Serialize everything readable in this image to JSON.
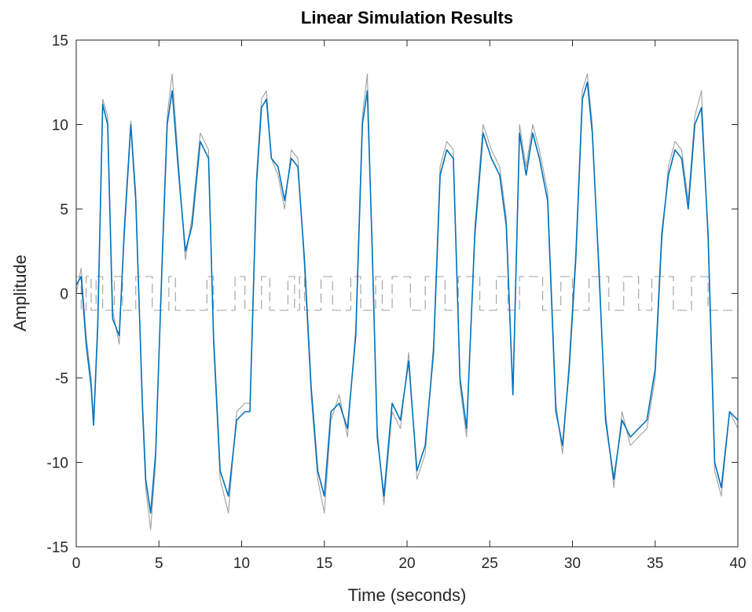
{
  "chart_data": {
    "type": "line",
    "title": "Linear Simulation Results",
    "xlabel": "Time (seconds)",
    "ylabel": "Amplitude",
    "xlim": [
      0,
      40
    ],
    "ylim": [
      -15,
      15
    ],
    "xticks": [
      0,
      5,
      10,
      15,
      20,
      25,
      30,
      35,
      40
    ],
    "yticks": [
      -15,
      -10,
      -5,
      0,
      5,
      10,
      15
    ],
    "grid": false,
    "legend": "none",
    "series": [
      {
        "role": "input",
        "style": "dashed-step",
        "color": "#a0a0a0",
        "x": [
          0,
          0.3,
          0.6,
          0.9,
          1.2,
          1.6,
          2.3,
          2.8,
          3.6,
          4.6,
          5.6,
          6.0,
          7.9,
          8.3,
          9.6,
          10.2,
          11.2,
          11.7,
          12.8,
          13.2,
          13.5,
          13.8,
          14.8,
          15.5,
          16.6,
          17.2,
          18.1,
          18.5,
          19.1,
          20.2,
          21.1,
          22.3,
          23.1,
          24.4,
          25.4,
          26.1,
          26.8,
          28.2,
          29.3,
          30.0,
          31.0,
          32.2,
          33.1,
          34.0,
          34.8,
          36.1,
          37.2,
          38.2,
          39.2,
          40.0
        ],
        "y": [
          1,
          -1,
          1,
          -1,
          1,
          -1,
          1,
          -1,
          1,
          -1,
          1,
          -1,
          1,
          -1,
          1,
          -1,
          1,
          -1,
          1,
          -1,
          1,
          -1,
          1,
          -1,
          1,
          -1,
          1,
          -1,
          1,
          -1,
          1,
          -1,
          1,
          -1,
          1,
          -1,
          1,
          -1,
          1,
          -1,
          1,
          -1,
          1,
          -1,
          1,
          -1,
          1,
          -1,
          -1,
          -1
        ]
      },
      {
        "role": "reference",
        "style": "solid",
        "color": "#a0a0a0",
        "x": [
          0,
          0.3,
          0.6,
          0.9,
          1.05,
          1.3,
          1.6,
          1.9,
          2.2,
          2.6,
          2.9,
          3.3,
          3.6,
          4.0,
          4.2,
          4.5,
          4.8,
          5.2,
          5.5,
          5.8,
          6.2,
          6.6,
          7.0,
          7.5,
          8.0,
          8.3,
          8.7,
          9.2,
          9.7,
          10.2,
          10.5,
          10.9,
          11.2,
          11.5,
          11.8,
          12.2,
          12.6,
          13.0,
          13.4,
          13.8,
          14.2,
          14.6,
          15.0,
          15.4,
          15.9,
          16.4,
          16.9,
          17.3,
          17.6,
          17.9,
          18.2,
          18.6,
          19.1,
          19.6,
          20.1,
          20.6,
          21.1,
          21.6,
          22.0,
          22.4,
          22.8,
          23.2,
          23.6,
          24.1,
          24.6,
          25.1,
          25.6,
          26.0,
          26.4,
          26.8,
          27.2,
          27.6,
          28.0,
          28.5,
          29.0,
          29.4,
          29.8,
          30.2,
          30.6,
          30.9,
          31.2,
          31.6,
          32.0,
          32.5,
          33.0,
          33.5,
          34.0,
          34.5,
          35.0,
          35.4,
          35.8,
          36.2,
          36.6,
          37.0,
          37.4,
          37.8,
          38.2,
          38.6,
          39.0,
          39.5,
          40.0
        ],
        "y": [
          0.0,
          1.5,
          -2.5,
          -5.0,
          -7.5,
          -1.5,
          11.5,
          10.5,
          -1.0,
          -3.0,
          4.0,
          10.2,
          6.0,
          -7.0,
          -11.5,
          -14.0,
          -10.0,
          2.5,
          10.5,
          13.0,
          7.5,
          2.0,
          4.5,
          9.5,
          8.5,
          -3.0,
          -11.0,
          -13.0,
          -7.0,
          -6.5,
          -6.5,
          7.0,
          11.5,
          12.0,
          8.0,
          7.0,
          5.0,
          8.5,
          8.0,
          1.5,
          -6.0,
          -11.0,
          -13.0,
          -7.5,
          -6.0,
          -8.5,
          -2.0,
          10.5,
          13.0,
          2.0,
          -8.0,
          -12.5,
          -7.0,
          -8.0,
          -3.5,
          -11.0,
          -9.5,
          -3.0,
          7.5,
          9.0,
          8.5,
          -5.5,
          -8.5,
          4.0,
          10.0,
          8.5,
          7.5,
          4.5,
          -6.0,
          10.0,
          7.5,
          10.0,
          8.5,
          6.0,
          -6.5,
          -9.5,
          -4.0,
          2.5,
          12.0,
          13.0,
          10.0,
          1.0,
          -7.0,
          -11.5,
          -7.0,
          -9.0,
          -8.5,
          -8.0,
          -5.0,
          3.0,
          7.5,
          9.0,
          8.5,
          5.5,
          10.5,
          12.0,
          3.0,
          -10.5,
          -12.0,
          -7.0,
          -8.0
        ]
      },
      {
        "role": "response",
        "style": "solid",
        "color": "#0072bd",
        "x": [
          0,
          0.3,
          0.6,
          0.9,
          1.05,
          1.3,
          1.6,
          1.9,
          2.2,
          2.6,
          2.9,
          3.3,
          3.6,
          4.0,
          4.2,
          4.5,
          4.8,
          5.2,
          5.5,
          5.8,
          6.2,
          6.6,
          7.0,
          7.5,
          8.0,
          8.3,
          8.7,
          9.2,
          9.7,
          10.2,
          10.5,
          10.9,
          11.2,
          11.5,
          11.8,
          12.2,
          12.6,
          13.0,
          13.4,
          13.8,
          14.2,
          14.6,
          15.0,
          15.4,
          15.9,
          16.4,
          16.9,
          17.3,
          17.6,
          17.9,
          18.2,
          18.6,
          19.1,
          19.6,
          20.1,
          20.6,
          21.1,
          21.6,
          22.0,
          22.4,
          22.8,
          23.2,
          23.6,
          24.1,
          24.6,
          25.1,
          25.6,
          26.0,
          26.4,
          26.8,
          27.2,
          27.6,
          28.0,
          28.5,
          29.0,
          29.4,
          29.8,
          30.2,
          30.6,
          30.9,
          31.2,
          31.6,
          32.0,
          32.5,
          33.0,
          33.5,
          34.0,
          34.5,
          35.0,
          35.4,
          35.8,
          36.2,
          36.6,
          37.0,
          37.4,
          37.8,
          38.2,
          38.6,
          39.0,
          39.5,
          40.0
        ],
        "y": [
          0.5,
          1.0,
          -3.0,
          -5.5,
          -7.8,
          -2.0,
          11.2,
          10.0,
          -1.5,
          -2.5,
          3.5,
          10.0,
          5.5,
          -6.5,
          -11.0,
          -13.0,
          -9.5,
          2.0,
          10.0,
          12.0,
          7.0,
          2.5,
          4.0,
          9.0,
          8.0,
          -2.5,
          -10.5,
          -12.0,
          -7.5,
          -7.0,
          -7.0,
          6.5,
          11.0,
          11.5,
          8.0,
          7.5,
          5.5,
          8.0,
          7.5,
          2.0,
          -5.5,
          -10.5,
          -12.0,
          -7.0,
          -6.5,
          -8.0,
          -2.5,
          10.0,
          12.0,
          2.5,
          -8.5,
          -12.0,
          -6.5,
          -7.5,
          -4.0,
          -10.5,
          -9.0,
          -3.5,
          7.0,
          8.5,
          8.0,
          -5.0,
          -8.0,
          3.5,
          9.5,
          8.0,
          7.0,
          4.0,
          -6.0,
          9.5,
          7.0,
          9.5,
          8.0,
          5.5,
          -7.0,
          -9.0,
          -4.5,
          2.0,
          11.5,
          12.5,
          9.5,
          1.5,
          -7.5,
          -11.0,
          -7.5,
          -8.5,
          -8.0,
          -7.5,
          -4.5,
          3.5,
          7.0,
          8.5,
          8.0,
          5.0,
          10.0,
          11.0,
          3.5,
          -10.0,
          -11.5,
          -7.0,
          -7.5
        ]
      }
    ]
  }
}
